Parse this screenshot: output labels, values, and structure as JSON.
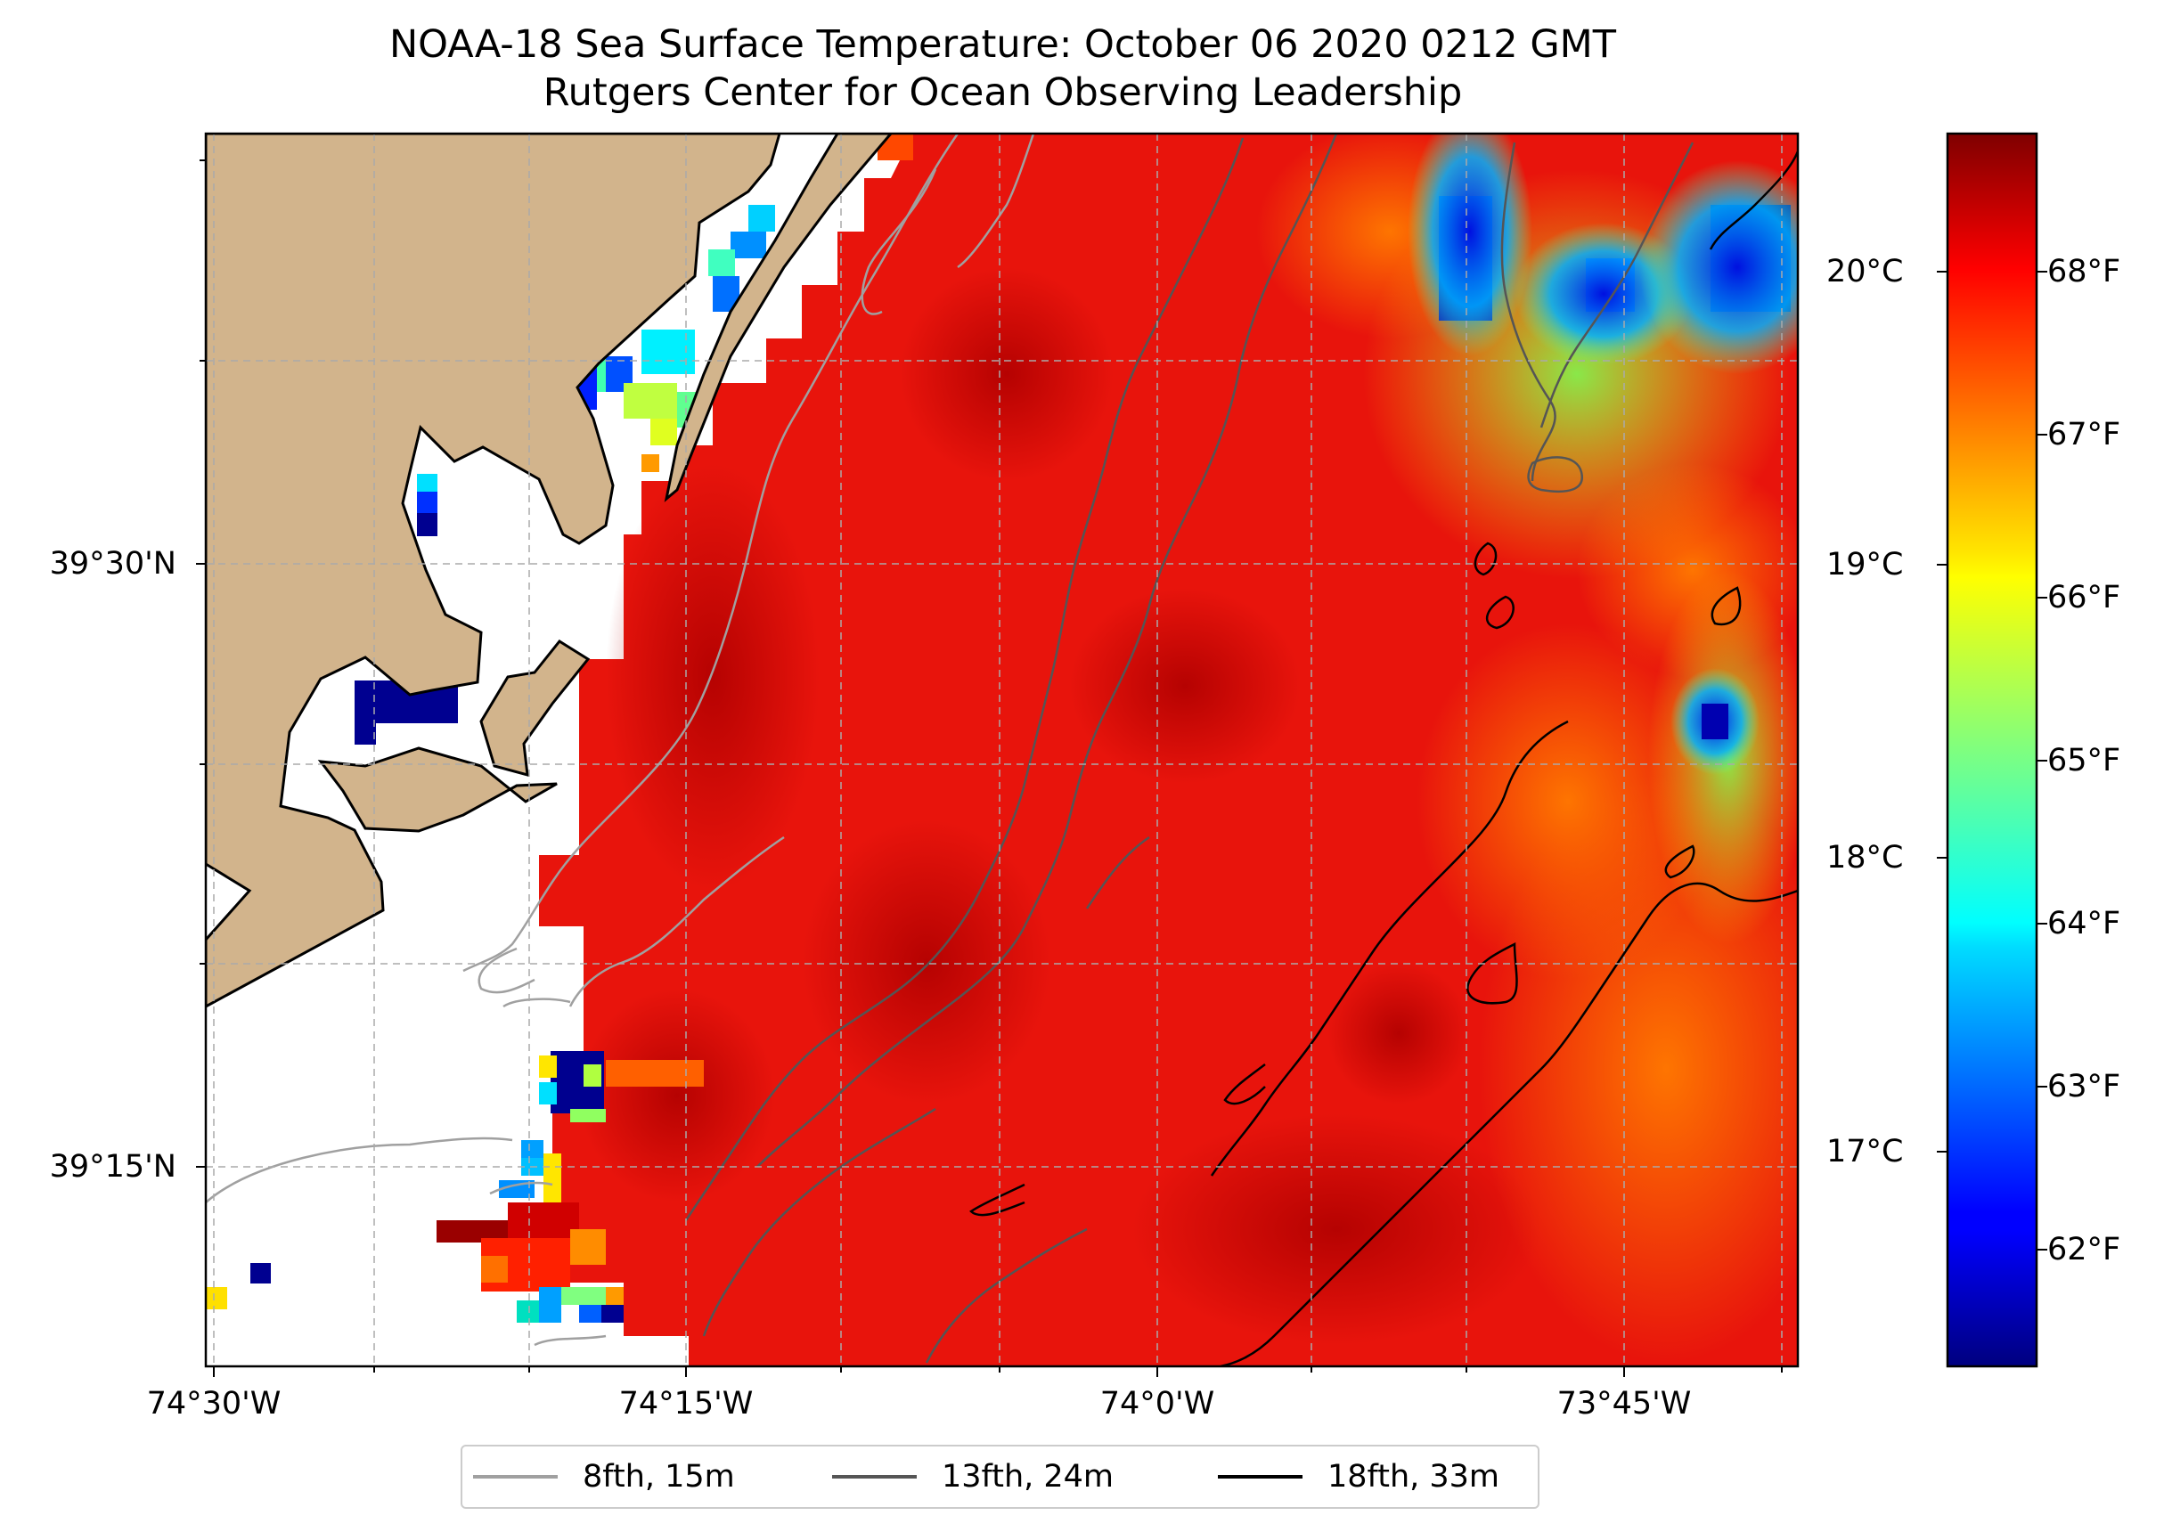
{
  "title": {
    "line1": "NOAA-18 Sea Surface Temperature: October 06 2020 0212 GMT",
    "line2": "Rutgers Center for Ocean Observing Leadership"
  },
  "map": {
    "lat_labels": [
      "39°30'N",
      "39°15'N"
    ],
    "lon_labels": [
      "74°30'W",
      "74°15'W",
      "74°0'W",
      "73°45'W"
    ],
    "land_color": "#d2b48c",
    "coast_color": "#000000",
    "no_data_color": "#ffffff"
  },
  "colorbar": {
    "colormap": "jet",
    "celsius_ticks": [
      "20°C",
      "19°C",
      "18°C",
      "17°C"
    ],
    "fahrenheit_ticks": [
      "68°F",
      "67°F",
      "66°F",
      "65°F",
      "64°F",
      "63°F",
      "62°F"
    ]
  },
  "legend": {
    "items": [
      {
        "label": "8fth, 15m",
        "color": "#a0a0a0"
      },
      {
        "label": "13fth, 24m",
        "color": "#555555"
      },
      {
        "label": "18fth, 33m",
        "color": "#000000"
      }
    ]
  }
}
